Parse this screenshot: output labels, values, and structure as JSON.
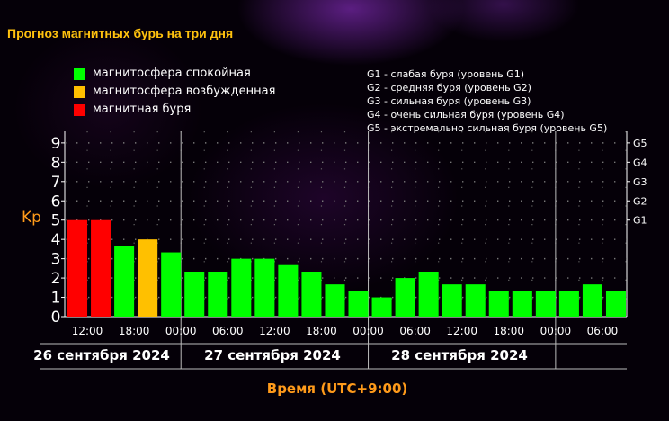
{
  "title": "Прогноз магнитных бурь на три дня",
  "legend": [
    {
      "label": "магнитосфера спокойная",
      "color": "#00ff00"
    },
    {
      "label": "магнитосфера возбужденная",
      "color": "#ffc000"
    },
    {
      "label": "магнитная буря",
      "color": "#ff0000"
    }
  ],
  "g_legend": [
    "G1 - слабая буря (уровень G1)",
    "G2 - средняя буря (уровень G2)",
    "G3 - сильная буря (уровень G3)",
    "G4 - очень сильная буря (уровень G4)",
    "G5 - экстремально сильная буря (уровень G5)"
  ],
  "chart_data": {
    "type": "bar",
    "title": "Прогноз магнитных бурь на три дня",
    "ylabel": "Kp",
    "xlabel": "Время (UTC+9:00)",
    "ylim": [
      0,
      9.6
    ],
    "y_ticks": [
      "0",
      "1",
      "2",
      "3",
      "4",
      "5",
      "6",
      "7",
      "8",
      "9"
    ],
    "right_ticks": [
      {
        "label": "G1",
        "value": 5
      },
      {
        "label": "G2",
        "value": 6
      },
      {
        "label": "G3",
        "value": 7
      },
      {
        "label": "G4",
        "value": 8
      },
      {
        "label": "G5",
        "value": 9
      }
    ],
    "x_ticks": [
      "12:00",
      "18:00",
      "00:00",
      "06:00",
      "12:00",
      "18:00",
      "00:00",
      "06:00",
      "12:00",
      "18:00",
      "00:00",
      "06:00"
    ],
    "days": [
      "26 сентября 2024",
      "27 сентября 2024",
      "28 сентября 2024"
    ],
    "values": [
      5.0,
      5.0,
      3.67,
      4.0,
      3.33,
      2.33,
      2.33,
      3.0,
      3.0,
      2.67,
      2.33,
      1.67,
      1.33,
      1.0,
      2.0,
      2.33,
      1.67,
      1.67,
      1.33,
      1.33,
      1.33,
      1.33,
      1.67,
      1.33
    ],
    "colors": [
      "#ff0000",
      "#ff0000",
      "#00ff00",
      "#ffc000",
      "#00ff00",
      "#00ff00",
      "#00ff00",
      "#00ff00",
      "#00ff00",
      "#00ff00",
      "#00ff00",
      "#00ff00",
      "#00ff00",
      "#00ff00",
      "#00ff00",
      "#00ff00",
      "#00ff00",
      "#00ff00",
      "#00ff00",
      "#00ff00",
      "#00ff00",
      "#00ff00",
      "#00ff00",
      "#00ff00"
    ],
    "grid": true,
    "legend_position": "top-left"
  }
}
